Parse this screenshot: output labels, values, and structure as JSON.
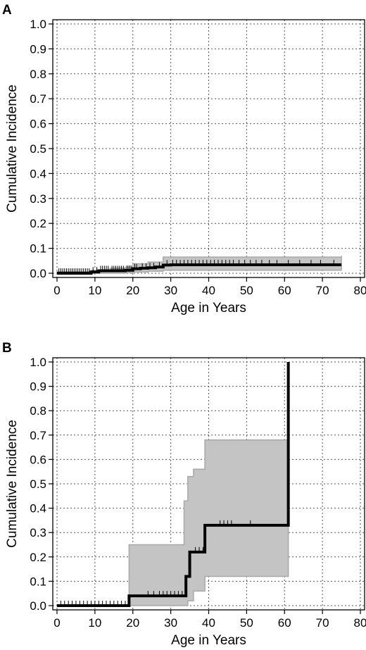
{
  "chart_data": [
    {
      "type": "line",
      "panel_label": "A",
      "xlabel": "Age in Years",
      "ylabel": "Cumulative Incidence",
      "xlim": [
        0,
        80
      ],
      "ylim": [
        0,
        1.0
      ],
      "xticks": [
        0,
        10,
        20,
        30,
        40,
        50,
        60,
        70,
        80
      ],
      "yticks": [
        0.0,
        0.1,
        0.2,
        0.3,
        0.4,
        0.5,
        0.6,
        0.7,
        0.8,
        0.9,
        1.0
      ],
      "xtick_labels": [
        "0",
        "10",
        "20",
        "30",
        "40",
        "50",
        "60",
        "70",
        "80"
      ],
      "ytick_labels": [
        "0.0",
        "0.1",
        "0.2",
        "0.3",
        "0.4",
        "0.5",
        "0.6",
        "0.7",
        "0.8",
        "0.9",
        "1.0"
      ],
      "grid": true,
      "series": [
        {
          "kind": "step",
          "x": [
            0,
            9,
            11,
            14,
            18,
            20,
            22,
            24,
            26,
            28,
            30,
            75
          ],
          "y": [
            0.0,
            0.005,
            0.01,
            0.01,
            0.012,
            0.018,
            0.02,
            0.022,
            0.025,
            0.033,
            0.034,
            0.034
          ]
        }
      ],
      "ci_band": {
        "x": [
          0,
          9,
          14,
          18,
          20,
          24,
          28,
          75
        ],
        "lower": [
          0.0,
          0.0,
          0.0,
          0.002,
          0.005,
          0.008,
          0.012,
          0.012
        ],
        "upper": [
          0.006,
          0.012,
          0.02,
          0.025,
          0.038,
          0.045,
          0.065,
          0.07
        ]
      },
      "censor_marks": [
        0.5,
        1.0,
        1.5,
        2.0,
        2.5,
        3.0,
        3.5,
        4.0,
        4.5,
        5.0,
        5.5,
        6.0,
        6.5,
        7.0,
        7.5,
        8.0,
        8.5,
        9.5,
        10.5,
        11.5,
        12.0,
        12.5,
        13.0,
        13.5,
        14.5,
        15.0,
        15.5,
        16.0,
        16.5,
        17.0,
        17.5,
        18.5,
        19.0,
        19.5,
        20.5,
        21.0,
        22.5,
        23.5,
        24.5,
        25.5,
        27.0,
        29.0,
        30.5,
        31.5,
        32.5,
        33.5,
        34.5,
        35.5,
        36.5,
        37.5,
        38.5,
        39.5,
        40.5,
        41.5,
        42.5,
        43.5,
        44.5,
        45.5,
        46.5,
        48.0,
        49.5,
        51.0,
        52.5,
        54.0,
        56.0,
        58.0,
        61.0,
        64.0,
        67.0,
        69.5,
        73.0
      ]
    },
    {
      "type": "line",
      "panel_label": "B",
      "xlabel": "Age in Years",
      "ylabel": "Cumulative Incidence",
      "xlim": [
        0,
        80
      ],
      "ylim": [
        0,
        1.0
      ],
      "xticks": [
        0,
        10,
        20,
        30,
        40,
        50,
        60,
        70,
        80
      ],
      "yticks": [
        0.0,
        0.1,
        0.2,
        0.3,
        0.4,
        0.5,
        0.6,
        0.7,
        0.8,
        0.9,
        1.0
      ],
      "xtick_labels": [
        "0",
        "10",
        "20",
        "30",
        "40",
        "50",
        "60",
        "70",
        "80"
      ],
      "ytick_labels": [
        "0.0",
        "0.1",
        "0.2",
        "0.3",
        "0.4",
        "0.5",
        "0.6",
        "0.7",
        "0.8",
        "0.9",
        "1.0"
      ],
      "grid": true,
      "series": [
        {
          "kind": "step",
          "x": [
            0,
            19,
            34,
            35,
            39,
            61,
            61
          ],
          "y": [
            0.0,
            0.04,
            0.12,
            0.22,
            0.33,
            1.0,
            1.0
          ]
        }
      ],
      "ci_band": {
        "x": [
          19,
          33.5,
          34.5,
          36,
          39,
          61
        ],
        "lower": [
          0.0,
          0.0,
          0.02,
          0.06,
          0.12,
          0.12
        ],
        "upper": [
          0.25,
          0.43,
          0.53,
          0.56,
          0.68,
          0.68
        ]
      },
      "censor_marks": [
        1.0,
        2.0,
        3.0,
        4.0,
        5.0,
        6.0,
        7.0,
        8.0,
        9.0,
        10.0,
        11.0,
        12.0,
        13.0,
        14.0,
        15.0,
        16.0,
        17.0,
        18.0,
        24.0,
        25.5,
        27.0,
        28.0,
        29.0,
        30.0,
        31.0,
        32.0,
        33.0,
        36.5,
        37.5,
        38.5,
        43.0,
        44.0,
        45.0,
        46.0,
        51.0
      ]
    }
  ]
}
